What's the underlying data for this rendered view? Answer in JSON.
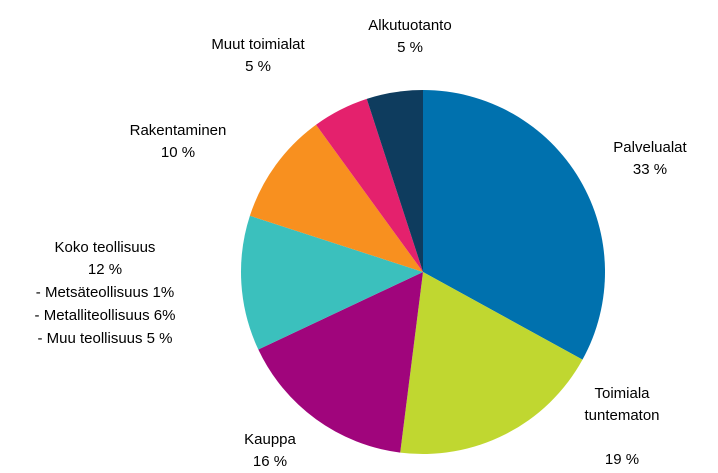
{
  "chart_data": {
    "type": "pie",
    "categories": [
      "Palvelualat",
      "Toimiala tuntematon",
      "Kauppa",
      "Koko teollisuus",
      "Rakentaminen",
      "Muut toimialat",
      "Alkutuotanto"
    ],
    "values": [
      33,
      19,
      16,
      12,
      10,
      5,
      5
    ],
    "value_labels": [
      "33 %",
      "19 %",
      "16 %",
      "12 %",
      "10 %",
      "5 %",
      "5 %"
    ],
    "colors": [
      "#0071ae",
      "#c0d730",
      "#a0057c",
      "#3bc0bd",
      "#f8901f",
      "#e4216d",
      "#0e3c5e"
    ],
    "annotations": [
      "- Metsäteollisuus 1%",
      "- Metalliteollisuus 6%",
      "- Muu teollisuus 5 %"
    ]
  }
}
